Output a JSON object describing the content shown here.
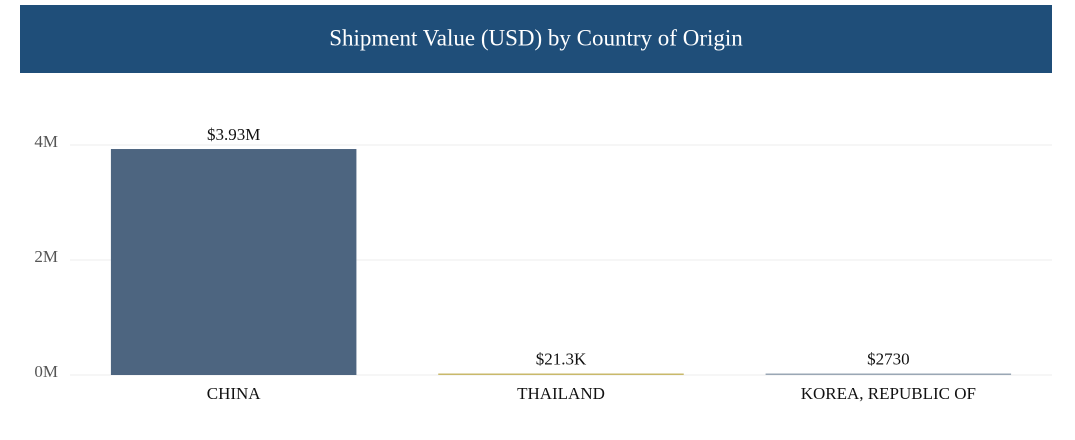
{
  "chart_data": {
    "type": "bar",
    "title": "Shipment Value (USD) by Country of Origin",
    "categories": [
      "CHINA",
      "THAILAND",
      "KOREA, REPUBLIC OF"
    ],
    "values": [
      3930000,
      21300,
      2730
    ],
    "value_labels": [
      "$3.93M",
      "$21.3K",
      "$2730"
    ],
    "colors": [
      "#4d6580",
      "#c9b96b",
      "#9aa7b5"
    ],
    "ylim": [
      0,
      4000000
    ],
    "yticks": [
      {
        "value": 0,
        "label": "0M"
      },
      {
        "value": 2000000,
        "label": "2M"
      },
      {
        "value": 4000000,
        "label": "4M"
      }
    ],
    "grid": true
  }
}
